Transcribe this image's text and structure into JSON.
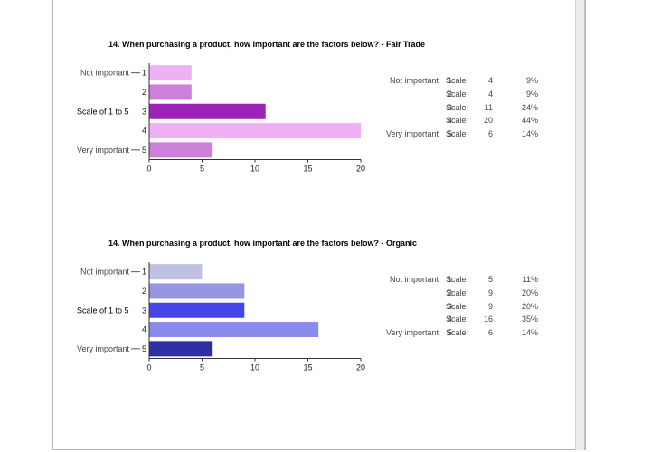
{
  "chart_data": [
    {
      "type": "bar",
      "orientation": "horizontal",
      "title": "14. When purchasing a product, how important are the factors below? - Fair Trade",
      "ylabel": "Scale of 1 to 5",
      "categories": [
        "1",
        "2",
        "3",
        "4",
        "5"
      ],
      "category_annotations": [
        "Not important",
        "",
        "",
        "",
        "Very important"
      ],
      "values": [
        4,
        4,
        11,
        20,
        6
      ],
      "percentages": [
        "9%",
        "9%",
        "24%",
        "44%",
        "14%"
      ],
      "xlim": [
        0,
        20
      ],
      "xticks": [
        "0",
        "5",
        "10",
        "15",
        "20"
      ],
      "bar_colors": [
        "#efb0f5",
        "#cb80d9",
        "#9d22b7",
        "#efb0f5",
        "#cb80d9"
      ],
      "grid": false
    },
    {
      "type": "bar",
      "orientation": "horizontal",
      "title": "14. When purchasing a product, how important are the factors below? - Organic",
      "ylabel": "Scale of 1 to 5",
      "categories": [
        "1",
        "2",
        "3",
        "4",
        "5"
      ],
      "category_annotations": [
        "Not important",
        "",
        "",
        "",
        "Very important"
      ],
      "values": [
        5,
        9,
        9,
        16,
        6
      ],
      "percentages": [
        "11%",
        "20%",
        "20%",
        "35%",
        "14%"
      ],
      "xlim": [
        0,
        20
      ],
      "xticks": [
        "0",
        "5",
        "10",
        "15",
        "20"
      ],
      "bar_colors": [
        "#bfc0e4",
        "#9496e2",
        "#4546e5",
        "#8a8ced",
        "#2e2fa3"
      ],
      "grid": false
    }
  ],
  "stats_label": "Scale:"
}
